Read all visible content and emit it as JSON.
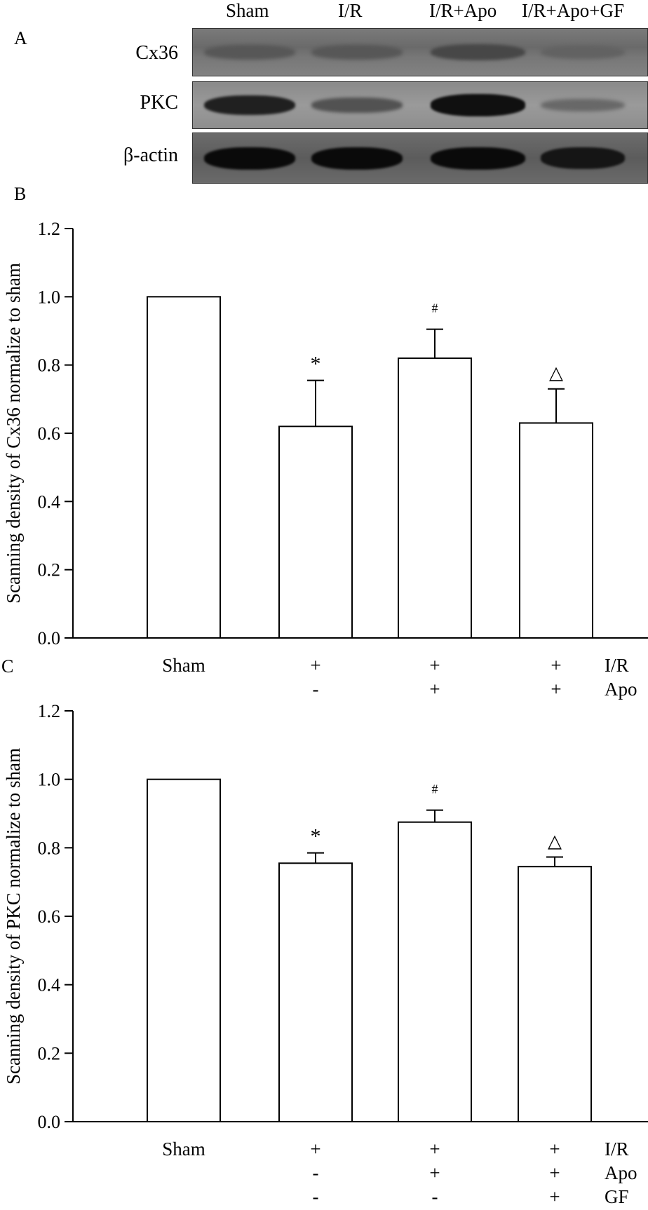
{
  "panel_letters": {
    "a": "A",
    "b": "B",
    "c": "C"
  },
  "western_blot": {
    "lanes": [
      "Sham",
      "I/R",
      "I/R+Apo",
      "I/R+Apo+GF"
    ],
    "rows": [
      {
        "label": "Cx36",
        "intensity": [
          0.3,
          0.3,
          0.45,
          0.2
        ]
      },
      {
        "label": "PKC",
        "intensity": [
          0.8,
          0.35,
          0.95,
          0.15
        ]
      },
      {
        "label": "β-actin",
        "intensity": [
          1.0,
          1.0,
          1.0,
          0.9
        ]
      }
    ]
  },
  "treatment_labels": {
    "sham": "Sham",
    "rows": [
      {
        "name": "I/R",
        "signs": [
          "+",
          "+",
          "+"
        ]
      },
      {
        "name": "Apo",
        "signs": [
          "-",
          "+",
          "+"
        ]
      },
      {
        "name": "GF",
        "signs": [
          "-",
          "-",
          "+"
        ]
      }
    ]
  },
  "chart_data": [
    {
      "type": "bar",
      "panel": "B",
      "title": "",
      "categories": [
        "Sham",
        "I/R",
        "I/R+Apo",
        "I/R+Apo+GF"
      ],
      "values": [
        1.0,
        0.62,
        0.82,
        0.63
      ],
      "error": [
        0,
        0.135,
        0.085,
        0.1
      ],
      "annotations": [
        "",
        "*",
        "#",
        "△"
      ],
      "ylabel": "Scanning density of Cx36 normalize to sham",
      "xlabel": "",
      "ylim": [
        0,
        1.2
      ],
      "yticks": [
        "0.0",
        "0.2",
        "0.4",
        "0.6",
        "0.8",
        "1.0",
        "1.2"
      ]
    },
    {
      "type": "bar",
      "panel": "C",
      "title": "",
      "categories": [
        "Sham",
        "I/R",
        "I/R+Apo",
        "I/R+Apo+GF"
      ],
      "values": [
        1.0,
        0.755,
        0.875,
        0.745
      ],
      "error": [
        0,
        0.03,
        0.035,
        0.028
      ],
      "annotations": [
        "",
        "*",
        "#",
        "△"
      ],
      "ylabel": "Scanning density of PKC normalize to sham",
      "xlabel": "",
      "ylim": [
        0,
        1.2
      ],
      "yticks": [
        "0.0",
        "0.2",
        "0.4",
        "0.6",
        "0.8",
        "1.0",
        "1.2"
      ]
    }
  ]
}
